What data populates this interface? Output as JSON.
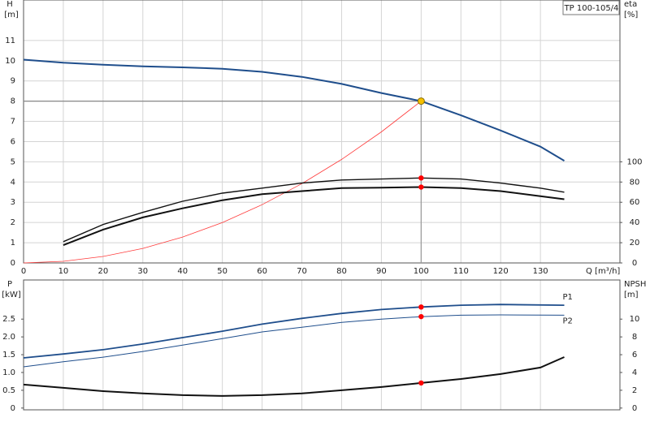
{
  "chart_data": [
    {
      "type": "line",
      "title": "TP 100-105/4",
      "x_label": "Q [m³/h]",
      "y_label": "H",
      "y_unit": "[m]",
      "y2_label": "eta",
      "y2_unit": "[%]",
      "xlim": [
        0,
        150
      ],
      "xticks": [
        0,
        10,
        20,
        30,
        40,
        50,
        60,
        70,
        80,
        90,
        100,
        110,
        120,
        130
      ],
      "ylim": [
        0,
        13
      ],
      "yticks": [
        0,
        1,
        2,
        3,
        4,
        5,
        6,
        7,
        8,
        9,
        10,
        11
      ],
      "y2lim": [
        0,
        260
      ],
      "y2ticks": [
        0,
        20,
        40,
        60,
        80,
        100
      ],
      "grid": true,
      "series": [
        {
          "color": "#1f4e8c",
          "axis": "y",
          "x": [
            0,
            10,
            20,
            30,
            40,
            50,
            60,
            70,
            80,
            90,
            100,
            110,
            120,
            130,
            136
          ],
          "values": [
            10.05,
            9.9,
            9.8,
            9.72,
            9.67,
            9.6,
            9.45,
            9.2,
            8.85,
            8.4,
            8,
            7.3,
            6.55,
            5.75,
            5.05
          ]
        },
        {
          "color": "#ff3b3b",
          "axis": "y",
          "x": [
            0,
            10,
            20,
            30,
            40,
            50,
            60,
            70,
            80,
            90,
            100
          ],
          "values": [
            0,
            0.08,
            0.32,
            0.72,
            1.28,
            2,
            2.88,
            3.92,
            5.12,
            6.48,
            8
          ]
        },
        {
          "color": "#111111",
          "axis": "y2",
          "x": [
            10,
            20,
            30,
            40,
            50,
            60,
            70,
            80,
            90,
            100,
            110,
            120,
            130,
            136
          ],
          "values": [
            21,
            38,
            50,
            61,
            69,
            74,
            79,
            82,
            83,
            84,
            83,
            79,
            74,
            70
          ]
        },
        {
          "color": "#111111",
          "axis": "y2",
          "x": [
            10,
            20,
            30,
            40,
            50,
            60,
            70,
            80,
            90,
            100,
            110,
            120,
            130,
            136
          ],
          "values": [
            17.6,
            33,
            45,
            54,
            62,
            68,
            71,
            74,
            74.5,
            75,
            74,
            71,
            66,
            63
          ]
        }
      ],
      "markers": [
        {
          "x": 100,
          "y": 8,
          "axis": "y",
          "color": "#f5c000"
        },
        {
          "x": 100,
          "y": 84,
          "axis": "y2",
          "color": "#ff0000"
        },
        {
          "x": 100,
          "y": 75,
          "axis": "y2",
          "color": "#ff0000"
        }
      ]
    },
    {
      "type": "line",
      "y_label": "P",
      "y_unit": "[kW]",
      "y2_label": "NPSH",
      "y2_unit": "[m]",
      "xlim": [
        0,
        150
      ],
      "ylim": [
        -0.05,
        3.6
      ],
      "yticks": [
        0,
        0.5,
        {
          "value": 1,
          "label": "1.0"
        },
        1.5,
        {
          "value": 2,
          "label": "2.0"
        },
        2.5
      ],
      "y2lim": [
        -0.2,
        14.4
      ],
      "y2ticks": [
        0,
        2,
        4,
        6,
        8,
        10
      ],
      "grid": true,
      "series": [
        {
          "name": "P1",
          "color": "#1f4e8c",
          "axis": "y",
          "x": [
            0,
            10,
            20,
            30,
            40,
            50,
            60,
            70,
            80,
            90,
            100,
            110,
            120,
            136
          ],
          "values": [
            1.41,
            1.52,
            1.64,
            1.8,
            1.98,
            2.16,
            2.36,
            2.52,
            2.66,
            2.77,
            2.84,
            2.89,
            2.91,
            2.89
          ]
        },
        {
          "name": "P2",
          "color": "#1f4e8c",
          "axis": "y",
          "x": [
            0,
            10,
            20,
            30,
            40,
            50,
            60,
            70,
            80,
            90,
            100,
            110,
            120,
            136
          ],
          "values": [
            1.16,
            1.3,
            1.43,
            1.59,
            1.77,
            1.95,
            2.14,
            2.27,
            2.41,
            2.5,
            2.57,
            2.61,
            2.62,
            2.61
          ]
        },
        {
          "color": "#111111",
          "axis": "y2",
          "x": [
            0,
            10,
            20,
            30,
            40,
            50,
            60,
            70,
            80,
            90,
            100,
            110,
            120,
            130,
            136
          ],
          "values": [
            2.64,
            2.27,
            1.9,
            1.64,
            1.45,
            1.36,
            1.45,
            1.64,
            2,
            2.36,
            2.82,
            3.27,
            3.82,
            4.55,
            5.73
          ]
        }
      ],
      "markers": [
        {
          "x": 100,
          "y": 2.84,
          "axis": "y",
          "color": "#ff0000"
        },
        {
          "x": 100,
          "y": 2.57,
          "axis": "y",
          "color": "#ff0000"
        },
        {
          "x": 100,
          "y": 2.82,
          "axis": "y2",
          "color": "#ff0000"
        }
      ]
    }
  ]
}
